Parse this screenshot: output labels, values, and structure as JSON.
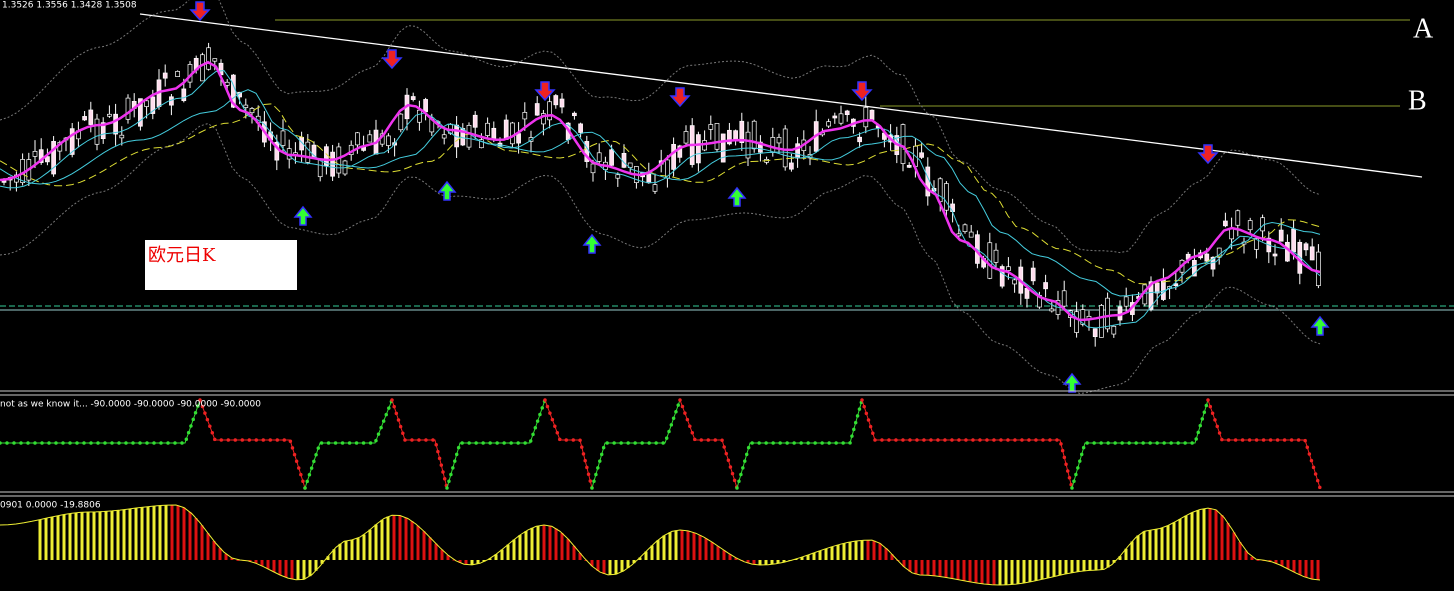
{
  "header": {
    "quote": "1.3526 1.3556 1.3428 1.3508"
  },
  "labels": {
    "a": "A",
    "b": "B",
    "note": "欧元日K"
  },
  "indicator1": {
    "label": "not as we know it... -90.0000 -90.0000 -90.0000 -90.0000"
  },
  "indicator2": {
    "label": "0901 0.0000 -19.8806"
  }
}
